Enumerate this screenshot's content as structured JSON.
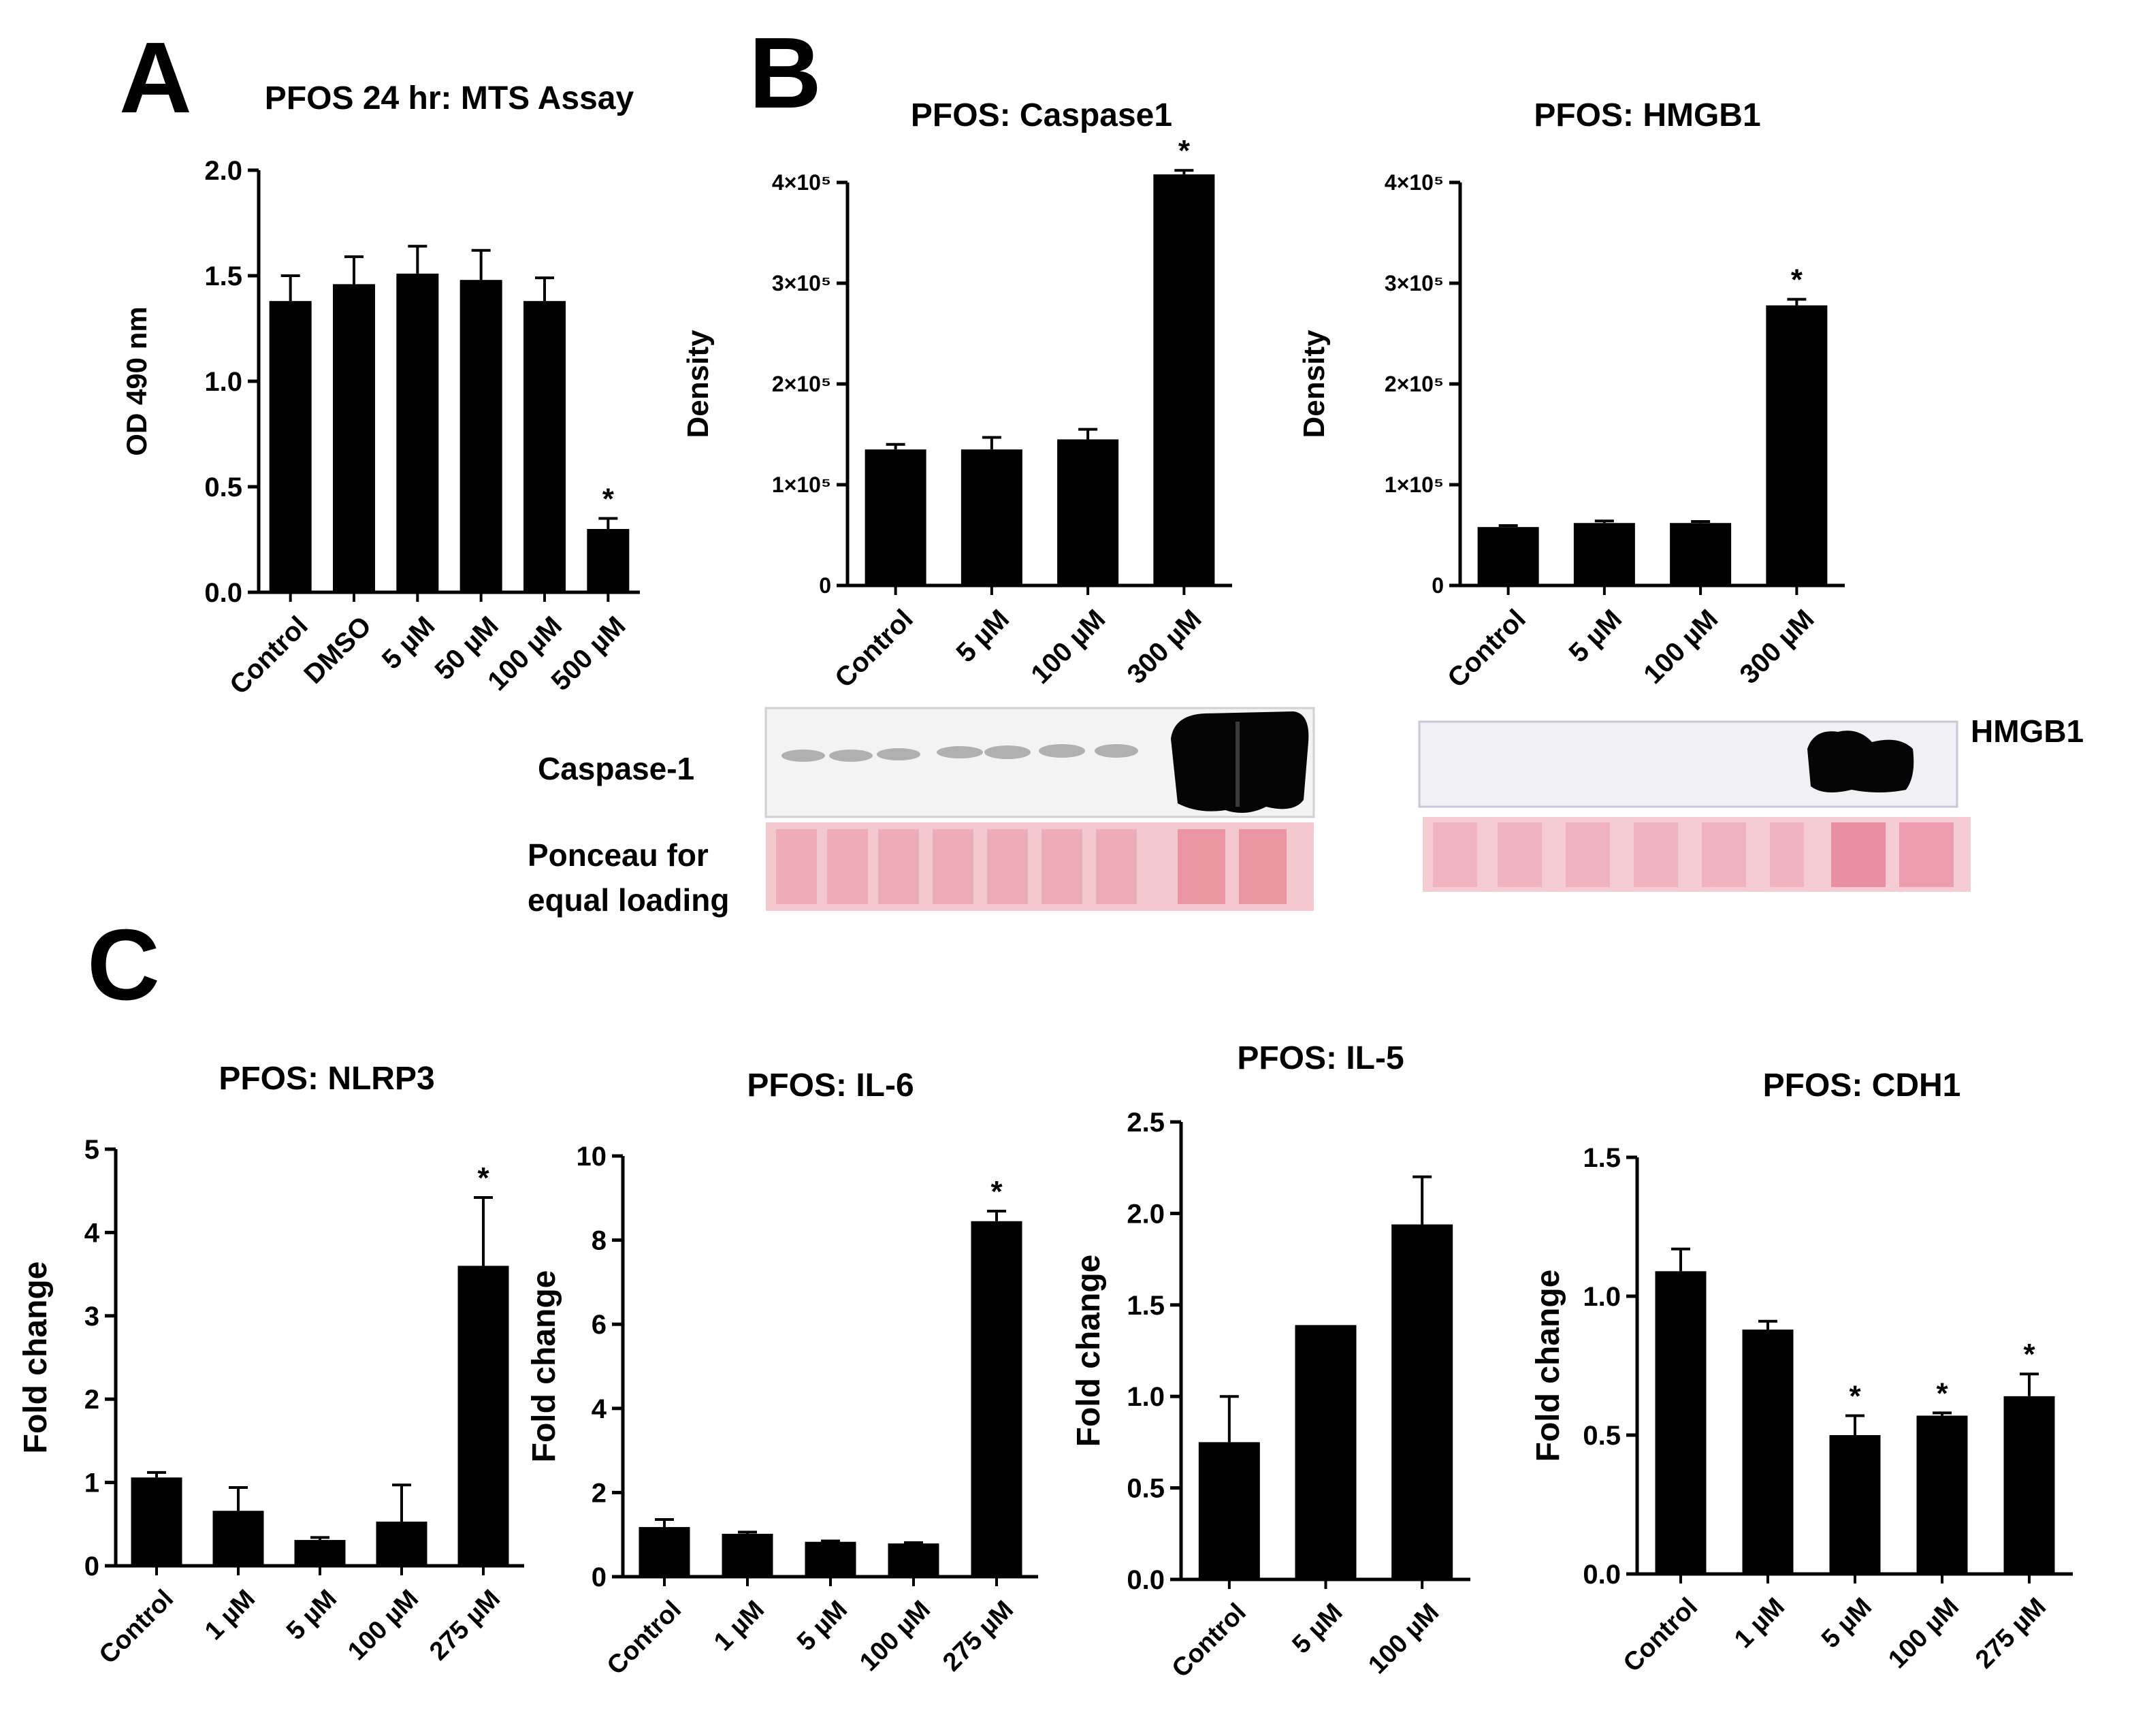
{
  "panel_letters": {
    "a": "A",
    "b": "B",
    "c": "C"
  },
  "blots": {
    "caspase_label": "Caspase-1",
    "hmgb1_label": "HMGB1",
    "ponceau_label_line1": "Ponceau for",
    "ponceau_label_line2": "equal loading"
  },
  "chart_data": [
    {
      "id": "a",
      "type": "bar",
      "title": "PFOS 24 hr: MTS Assay",
      "xlabel": "",
      "ylabel": "OD 490 nm",
      "ylim": [
        0,
        2.0
      ],
      "yticks": [
        "0.0",
        "0.5",
        "1.0",
        "1.5",
        "2.0"
      ],
      "ytick_values": [
        0,
        0.5,
        1.0,
        1.5,
        2.0
      ],
      "categories": [
        "Control",
        "DMSO",
        "5 µM",
        "50 µM",
        "100 µM",
        "500 µM"
      ],
      "values": [
        1.38,
        1.46,
        1.51,
        1.48,
        1.38,
        0.3
      ],
      "errors": [
        0.12,
        0.13,
        0.13,
        0.14,
        0.11,
        0.05
      ],
      "significant": [
        "",
        "",
        "",
        "",
        "",
        "*"
      ],
      "grid": false,
      "legend": "none",
      "bar_color": "#000000"
    },
    {
      "id": "b1",
      "type": "bar",
      "title": "PFOS: Caspase1",
      "xlabel": "",
      "ylabel": "Density",
      "ylim": [
        0,
        400000
      ],
      "ytick_values": [
        0,
        100000,
        200000,
        300000,
        400000
      ],
      "yticks": [
        "0",
        "1×10⁵",
        "2×10⁵",
        "3×10⁵",
        "4×10⁵"
      ],
      "categories": [
        "Control",
        "5 µM",
        "100 µM",
        "300 µM"
      ],
      "values": [
        135000,
        135000,
        145000,
        408000
      ],
      "errors": [
        5000,
        12000,
        10000,
        4000
      ],
      "significant": [
        "",
        "",
        "",
        "*"
      ],
      "grid": false,
      "legend": "none",
      "bar_color": "#000000"
    },
    {
      "id": "b2",
      "type": "bar",
      "title": "PFOS: HMGB1",
      "xlabel": "",
      "ylabel": "Density",
      "ylim": [
        0,
        400000
      ],
      "ytick_values": [
        0,
        100000,
        200000,
        300000,
        400000
      ],
      "yticks": [
        "0",
        "1×10⁵",
        "2×10⁵",
        "3×10⁵",
        "4×10⁵"
      ],
      "categories": [
        "Control",
        "5 µM",
        "100 µM",
        "300 µM"
      ],
      "values": [
        58000,
        62000,
        62000,
        278000
      ],
      "errors": [
        1500,
        2000,
        1500,
        6000
      ],
      "significant": [
        "",
        "",
        "",
        "*"
      ],
      "grid": false,
      "legend": "none",
      "bar_color": "#000000"
    },
    {
      "id": "c1",
      "type": "bar",
      "title": "PFOS: NLRP3",
      "xlabel": "",
      "ylabel": "Fold change",
      "ylim": [
        0,
        5
      ],
      "ytick_values": [
        0,
        1,
        2,
        3,
        4,
        5
      ],
      "yticks": [
        "0",
        "1",
        "2",
        "3",
        "4",
        "5"
      ],
      "categories": [
        "Control",
        "1 µM",
        "5 µM",
        "100 µM",
        "275 µM"
      ],
      "values": [
        1.06,
        0.66,
        0.31,
        0.53,
        3.6
      ],
      "errors": [
        0.06,
        0.28,
        0.03,
        0.44,
        0.82
      ],
      "significant": [
        "",
        "",
        "",
        "",
        "*"
      ],
      "grid": false,
      "legend": "none",
      "bar_color": "#000000"
    },
    {
      "id": "c2",
      "type": "bar",
      "title": "PFOS: IL-6",
      "xlabel": "",
      "ylabel": "Fold change",
      "ylim": [
        0,
        10
      ],
      "ytick_values": [
        0,
        2,
        4,
        6,
        8,
        10
      ],
      "yticks": [
        "0",
        "2",
        "4",
        "6",
        "8",
        "10"
      ],
      "categories": [
        "Control",
        "1 µM",
        "5 µM",
        "100 µM",
        "275 µM"
      ],
      "values": [
        1.18,
        1.02,
        0.83,
        0.79,
        8.45
      ],
      "errors": [
        0.18,
        0.04,
        0.02,
        0.02,
        0.24
      ],
      "significant": [
        "",
        "",
        "",
        "",
        "*"
      ],
      "grid": false,
      "legend": "none",
      "bar_color": "#000000"
    },
    {
      "id": "c3",
      "type": "bar",
      "title": "PFOS: IL-5",
      "xlabel": "",
      "ylabel": "Fold change",
      "ylim": [
        0,
        2.5
      ],
      "ytick_values": [
        0,
        0.5,
        1.0,
        1.5,
        2.0,
        2.5
      ],
      "yticks": [
        "0.0",
        "0.5",
        "1.0",
        "1.5",
        "2.0",
        "2.5"
      ],
      "categories": [
        "Control",
        "5 µM",
        "100 µM"
      ],
      "values": [
        0.75,
        1.39,
        1.94
      ],
      "errors": [
        0.25,
        0,
        0.26
      ],
      "significant": [
        "",
        "",
        ""
      ],
      "grid": false,
      "legend": "none",
      "bar_color": "#000000"
    },
    {
      "id": "c4",
      "type": "bar",
      "title": "PFOS: CDH1",
      "xlabel": "",
      "ylabel": "Fold change",
      "ylim": [
        0,
        1.5
      ],
      "ytick_values": [
        0,
        0.5,
        1.0,
        1.5
      ],
      "yticks": [
        "0.0",
        "0.5",
        "1.0",
        "1.5"
      ],
      "categories": [
        "Control",
        "1 µM",
        "5 µM",
        "100 µM",
        "275 µM"
      ],
      "values": [
        1.09,
        0.88,
        0.5,
        0.57,
        0.64
      ],
      "errors": [
        0.08,
        0.03,
        0.07,
        0.01,
        0.08
      ],
      "significant": [
        "",
        "",
        "*",
        "*",
        "*"
      ],
      "grid": false,
      "legend": "none",
      "bar_color": "#000000"
    }
  ]
}
